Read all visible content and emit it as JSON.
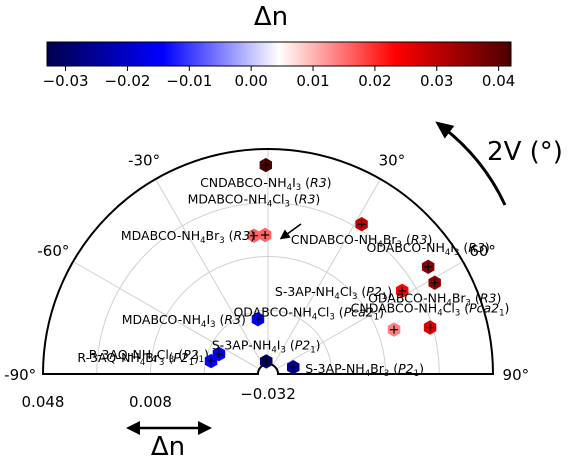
{
  "chart_data": {
    "type": "scatter",
    "coordinate_system": "half-polar",
    "colorbar": {
      "title": "Δn",
      "range": [
        -0.033,
        0.042
      ],
      "ticks": [
        "−0.03",
        "−0.02",
        "−0.01",
        "0.00",
        "0.01",
        "0.02",
        "0.03",
        "0.04"
      ],
      "tick_values": [
        -0.03,
        -0.02,
        -0.01,
        0.0,
        0.01,
        0.02,
        0.03,
        0.04
      ],
      "colors": [
        "#00004c",
        "#0000ff",
        "#ffffff",
        "#ff0000",
        "#4c0000"
      ]
    },
    "angular_axis": {
      "label": "2V (°)",
      "range": [
        -90,
        90
      ],
      "ticks": [
        "-90°",
        "-60°",
        "-30°",
        "30°",
        "60°",
        "90°"
      ],
      "tick_values": [
        -90,
        -60,
        -30,
        30,
        60,
        90
      ]
    },
    "radial_axis": {
      "label": "Δn",
      "center_label": "−0.032",
      "center_value": -0.032,
      "tick_labels": [
        "0.008",
        "0.048"
      ],
      "tick_values": [
        0.008,
        0.048
      ],
      "grid_values": [
        -0.012,
        0.008,
        0.028
      ]
    },
    "grid": true,
    "points": [
      {
        "label": "CNDABCO-NH₄I₃ (R3)",
        "sub": "4",
        "sub2": "3",
        "base": "CNDABCO-NH",
        "mid": "I",
        "sg": "R3",
        "angle": -0.6,
        "r": 0.042,
        "dn": 0.042
      },
      {
        "label": "MDABCO-NH₄Cl₃ (R3)",
        "base": "MDABCO-NH",
        "mid": "Cl",
        "sg": "R3",
        "angle": -5.8,
        "r": 0.016,
        "dn": 0.016
      },
      {
        "label": "MDABCO-NH₄Br₃ (R3)",
        "base": "MDABCO-NH",
        "mid": "Br",
        "sg": "R3",
        "angle": -1.2,
        "r": 0.016,
        "dn": 0.016
      },
      {
        "label": "CNDABCO-NH₄Br₃ (R3)",
        "base": "CNDABCO-NH",
        "mid": "Br",
        "sg": "R3",
        "angle": 32.0,
        "r": 0.03,
        "dn": 0.03
      },
      {
        "label": "MDABCO-NH₄I₃ (R3)",
        "base": "MDABCO-NH",
        "mid": "I",
        "sg": "R3",
        "angle": -10.4,
        "r": -0.015,
        "dn": -0.015
      },
      {
        "label": "ODABCO-NH₄I₃ (R3)",
        "base": "ODABCO-NH",
        "mid": "I",
        "sg": "R3",
        "angle": 56.2,
        "r": 0.036,
        "dn": 0.036
      },
      {
        "label": "S-3AP-NH₄Cl₃ (P2₁)",
        "base": "S-3AP-NH",
        "mid": "Cl",
        "sg": "P2",
        "sgsub": "1",
        "angle": 58.2,
        "r": 0.023,
        "dn": 0.023
      },
      {
        "label": "ODABCO-NH₄Br₃ (R3)",
        "base": "ODABCO-NH",
        "mid": "Br",
        "sg": "R3",
        "angle": 61.3,
        "r": 0.035,
        "dn": 0.035
      },
      {
        "label": "ODABCO-NH₄Cl₃ (Pca2₁)",
        "base": "ODABCO-NH",
        "mid": "Cl",
        "sg": "Pca2",
        "sgsub": "1",
        "angle": 70.6,
        "r": 0.014,
        "dn": 0.014
      },
      {
        "label": "CNDABCO-NH₄Cl₃ (Pca2₁)",
        "base": "CNDABCO-NH",
        "mid": "Cl",
        "sg": "Pca2",
        "sgsub": "1",
        "angle": 74.0,
        "r": 0.027,
        "dn": 0.027
      },
      {
        "label": "R-3AQ-NH₄Cl₃ (P2₁)",
        "base": "R-3AQ-NH",
        "mid": "Cl",
        "sg": "P2",
        "sgsub": "1",
        "angle": -67.8,
        "r": -0.016,
        "dn": -0.016
      },
      {
        "label": "R-3AQ-NH₄Br₃ (P2₁)",
        "base": "R-3AQ-NH",
        "mid": "Br",
        "sg": "P2",
        "sgsub": "1",
        "angle": -77.2,
        "r": -0.014,
        "dn": -0.014
      },
      {
        "label": "S-3AP-NH₄I₃ (P2₁)",
        "base": "S-3AP-NH",
        "mid": "I",
        "sg": "P2",
        "sgsub": "1",
        "angle": -8.0,
        "r": -0.031,
        "dn": -0.031
      },
      {
        "label": "S-3AP-NH₄Br₃ (P2₁)",
        "base": "S-3AP-NH",
        "mid": "Br",
        "sg": "P2",
        "sgsub": "1",
        "angle": 75.0,
        "r": -0.026,
        "dn": -0.026
      }
    ]
  }
}
